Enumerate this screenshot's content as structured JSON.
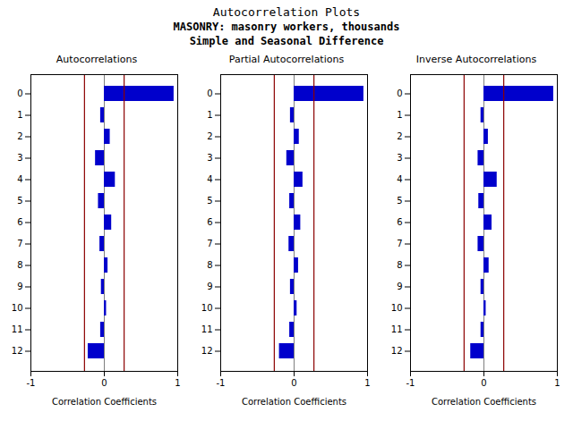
{
  "title": "Autocorrelation Plots",
  "subtitle": [
    "MASONRY: masonry workers, thousands",
    "Simple and Seasonal Difference"
  ],
  "chart_data": [
    {
      "type": "bar",
      "orientation": "horizontal",
      "title": "Autocorrelations",
      "xlabel": "Correlation Coefficients",
      "categories": [
        0,
        1,
        2,
        3,
        4,
        5,
        6,
        7,
        8,
        9,
        10,
        11,
        12
      ],
      "values": [
        0.95,
        -0.05,
        0.08,
        -0.12,
        0.15,
        -0.08,
        0.1,
        -0.06,
        0.05,
        -0.04,
        0.03,
        -0.05,
        -0.22
      ],
      "color": "#0000cc",
      "xlim": [
        -1,
        1
      ],
      "xticks": [
        -1,
        0,
        1
      ],
      "grid": false,
      "confidence_bound": {
        "value": 0.27,
        "color": "#8b0000"
      }
    },
    {
      "type": "bar",
      "orientation": "horizontal",
      "title": "Partial Autocorrelations",
      "xlabel": "Correlation Coefficients",
      "categories": [
        0,
        1,
        2,
        3,
        4,
        5,
        6,
        7,
        8,
        9,
        10,
        11,
        12
      ],
      "values": [
        0.95,
        -0.05,
        0.07,
        -0.1,
        0.12,
        -0.06,
        0.09,
        -0.07,
        0.06,
        -0.05,
        0.04,
        -0.06,
        -0.2
      ],
      "color": "#0000cc",
      "xlim": [
        -1,
        1
      ],
      "xticks": [
        -1,
        0,
        1
      ],
      "grid": false,
      "confidence_bound": {
        "value": 0.27,
        "color": "#8b0000"
      }
    },
    {
      "type": "bar",
      "orientation": "horizontal",
      "title": "Inverse Autocorrelations",
      "xlabel": "Correlation Coefficients",
      "categories": [
        0,
        1,
        2,
        3,
        4,
        5,
        6,
        7,
        8,
        9,
        10,
        11,
        12
      ],
      "values": [
        0.95,
        -0.04,
        0.06,
        -0.08,
        0.18,
        -0.07,
        0.11,
        -0.08,
        0.07,
        -0.04,
        0.03,
        -0.04,
        -0.18
      ],
      "color": "#0000cc",
      "xlim": [
        -1,
        1
      ],
      "xticks": [
        -1,
        0,
        1
      ],
      "grid": false,
      "confidence_bound": {
        "value": 0.27,
        "color": "#8b0000"
      }
    }
  ]
}
